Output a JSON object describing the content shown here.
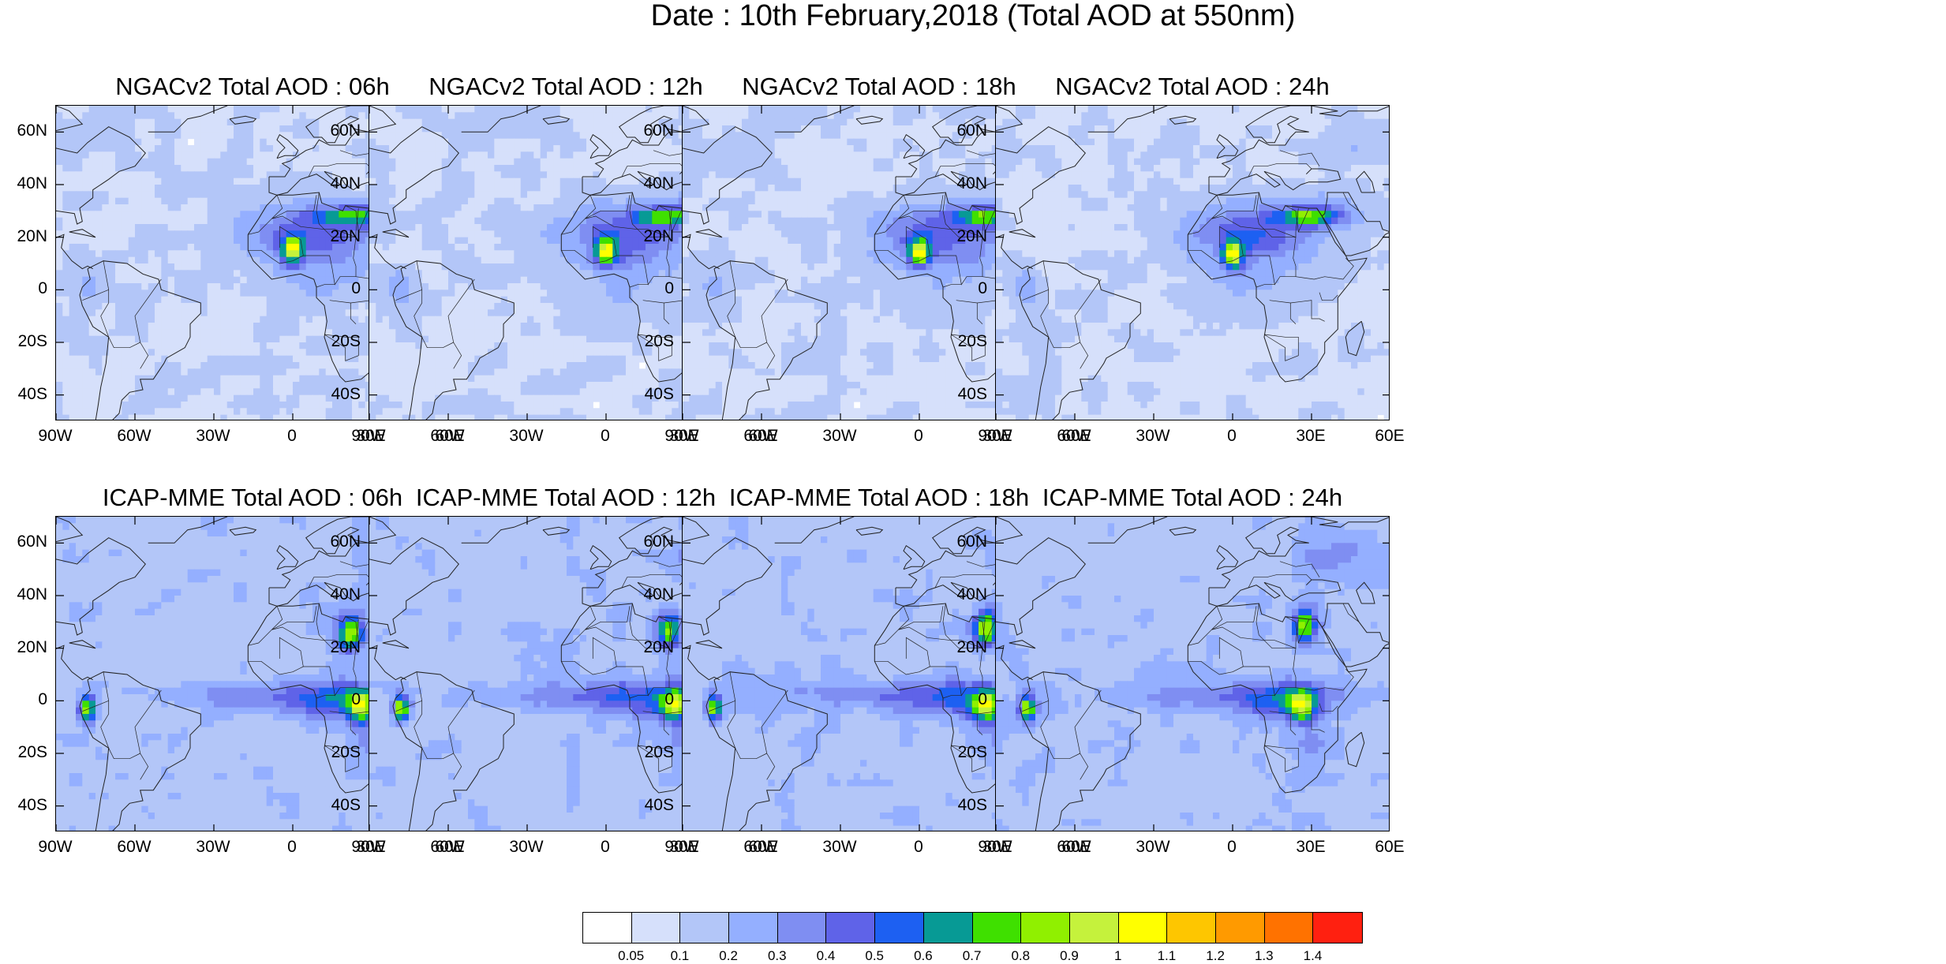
{
  "title": "Date : 10th February,2018 (Total AOD at 550nm)",
  "panels": [
    {
      "title": "NGACv2 Total AOD : 06h",
      "model": "ngac",
      "hour": 6
    },
    {
      "title": "NGACv2 Total AOD : 12h",
      "model": "ngac",
      "hour": 12
    },
    {
      "title": "NGACv2 Total AOD : 18h",
      "model": "ngac",
      "hour": 18
    },
    {
      "title": "NGACv2 Total AOD : 24h",
      "model": "ngac",
      "hour": 24
    },
    {
      "title": "ICAP-MME Total AOD : 06h",
      "model": "icap",
      "hour": 6
    },
    {
      "title": "ICAP-MME Total AOD : 12h",
      "model": "icap",
      "hour": 12
    },
    {
      "title": "ICAP-MME Total AOD : 18h",
      "model": "icap",
      "hour": 18
    },
    {
      "title": "ICAP-MME Total AOD : 24h",
      "model": "icap",
      "hour": 24
    }
  ],
  "lat_labels": [
    "60N",
    "40N",
    "20N",
    "0",
    "20S",
    "40S"
  ],
  "lon_labels": [
    "90W",
    "60W",
    "30W",
    "0",
    "30E",
    "60E"
  ],
  "map_extent": {
    "lon": [
      -90,
      60
    ],
    "lat": [
      -50,
      70
    ]
  },
  "colorbar": {
    "labels": [
      "0.05",
      "0.1",
      "0.2",
      "0.3",
      "0.4",
      "0.5",
      "0.6",
      "0.7",
      "0.8",
      "0.9",
      "1",
      "1.1",
      "1.2",
      "1.3",
      "1.4"
    ],
    "colors": [
      "#ffffff",
      "#d6e0fb",
      "#b3c6f8",
      "#94afff",
      "#7f8ef2",
      "#5f63e8",
      "#1d60f2",
      "#079a95",
      "#3fe000",
      "#90f000",
      "#c5f23c",
      "#ffff00",
      "#fec600",
      "#ff9a00",
      "#ff7200",
      "#ff2010"
    ]
  }
}
